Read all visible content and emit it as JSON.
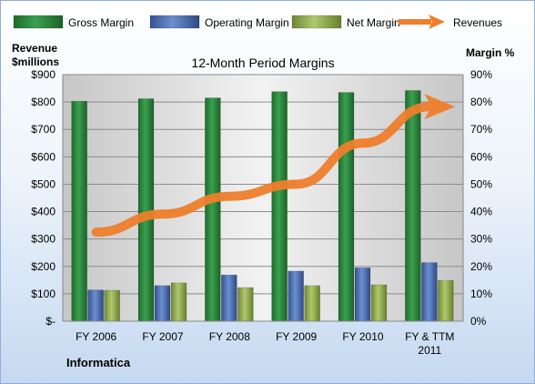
{
  "chart_data": {
    "type": "bar",
    "title": "12-Month Period Margins",
    "company": "Informatica",
    "y_left_label_line1": "Revenue",
    "y_left_label_line2": "$millions",
    "y_right_label": "Margin %",
    "y_left_ticks": [
      "$-",
      "$100",
      "$200",
      "$300",
      "$400",
      "$500",
      "$600",
      "$700",
      "$800",
      "$900"
    ],
    "y_right_ticks": [
      "0%",
      "10%",
      "20%",
      "30%",
      "40%",
      "50%",
      "60%",
      "70%",
      "80%",
      "90%"
    ],
    "ylim_left": [
      0,
      900
    ],
    "ylim_right": [
      0,
      90
    ],
    "categories": [
      [
        "FY 2006"
      ],
      [
        "FY 2007"
      ],
      [
        "FY 2008"
      ],
      [
        "FY 2009"
      ],
      [
        "FY 2010"
      ],
      [
        "FY & TTM",
        "2011"
      ]
    ],
    "series": [
      {
        "name": "Gross Margin",
        "type": "bar",
        "axis": "right",
        "color": "#2e8b3e",
        "values": [
          80.3,
          81.2,
          81.5,
          83.8,
          83.5,
          84.2
        ]
      },
      {
        "name": "Operating Margin",
        "type": "bar",
        "axis": "right",
        "color": "#4f72b8",
        "values": [
          11.4,
          13.0,
          16.9,
          18.3,
          19.5,
          21.4
        ]
      },
      {
        "name": "Net Margin",
        "type": "bar",
        "axis": "right",
        "color": "#93ab52",
        "values": [
          11.3,
          14.0,
          12.3,
          13.0,
          13.3,
          14.9
        ]
      },
      {
        "name": "Revenues",
        "type": "line",
        "axis": "left",
        "color": "#ef7f2c",
        "values": [
          325,
          391,
          456,
          500,
          650,
          783
        ]
      }
    ],
    "grid": true,
    "legend_position": "top"
  }
}
